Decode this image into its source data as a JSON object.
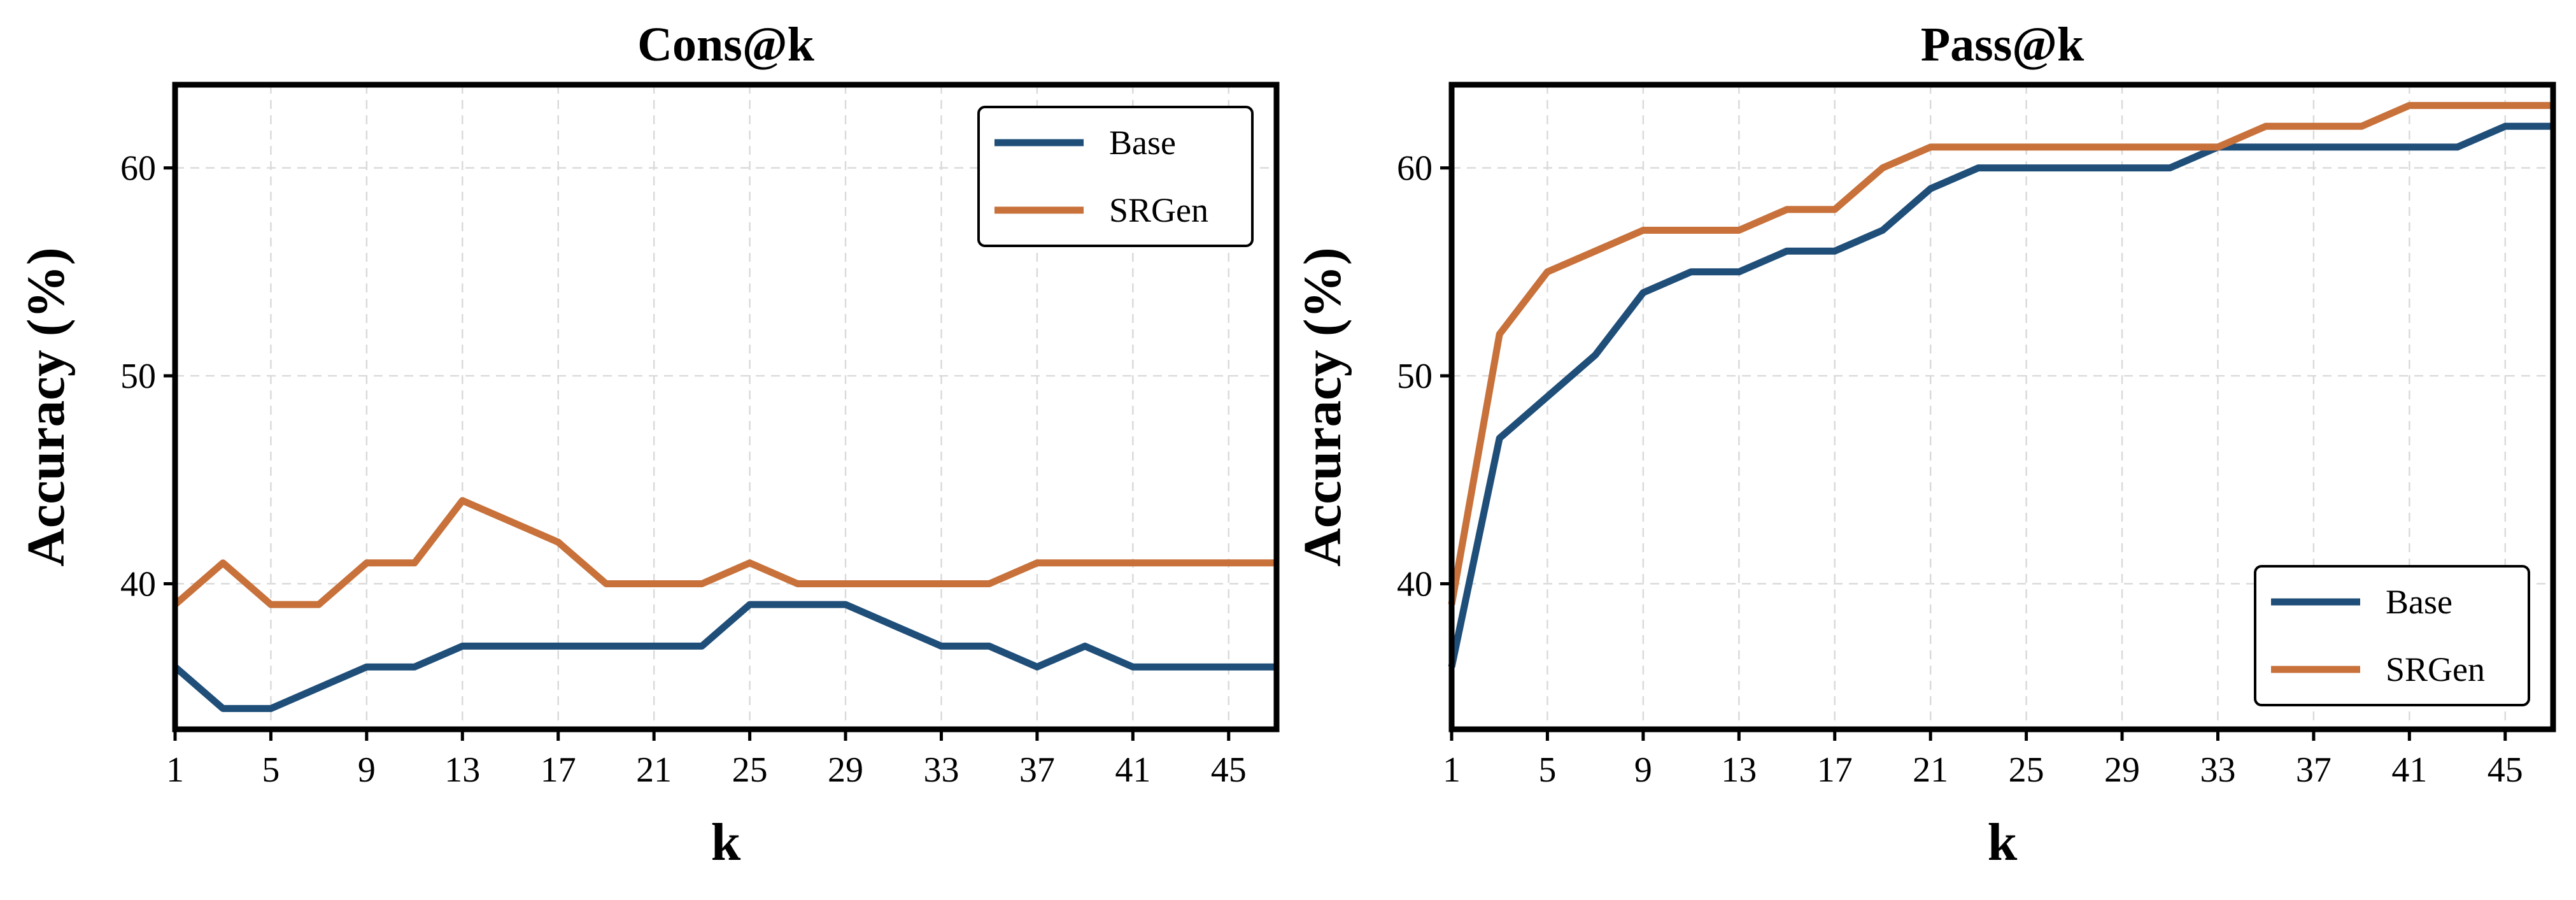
{
  "chart_data": [
    {
      "type": "line",
      "title": "Cons@k",
      "xlabel": "k",
      "ylabel": "Accuracy (%)",
      "x": [
        1,
        3,
        5,
        7,
        9,
        11,
        13,
        15,
        17,
        19,
        21,
        23,
        25,
        27,
        29,
        31,
        33,
        35,
        37,
        39,
        41,
        43,
        45,
        47
      ],
      "xticks": [
        "1",
        "5",
        "9",
        "13",
        "17",
        "21",
        "25",
        "29",
        "33",
        "37",
        "41",
        "45"
      ],
      "yticks": [
        "40",
        "50",
        "60"
      ],
      "xlim": [
        1,
        47
      ],
      "ylim": [
        33,
        64
      ],
      "legend_position": "top-right",
      "grid": true,
      "series": [
        {
          "name": "Base",
          "color": "#1f4e79",
          "values": [
            36,
            34,
            34,
            35,
            36,
            36,
            37,
            37,
            37,
            37,
            37,
            37,
            39,
            39,
            39,
            38,
            37,
            37,
            36,
            37,
            36,
            36,
            36,
            36
          ]
        },
        {
          "name": "SRGen",
          "color": "#c8713a",
          "values": [
            39,
            41,
            39,
            39,
            41,
            41,
            44,
            43,
            42,
            40,
            40,
            40,
            41,
            40,
            40,
            40,
            40,
            40,
            41,
            41,
            41,
            41,
            41,
            41
          ]
        }
      ]
    },
    {
      "type": "line",
      "title": "Pass@k",
      "xlabel": "k",
      "ylabel": "Accuracy (%)",
      "x": [
        1,
        3,
        5,
        7,
        9,
        11,
        13,
        15,
        17,
        19,
        21,
        23,
        25,
        27,
        29,
        31,
        33,
        35,
        37,
        39,
        41,
        43,
        45,
        47
      ],
      "xticks": [
        "1",
        "5",
        "9",
        "13",
        "17",
        "21",
        "25",
        "29",
        "33",
        "37",
        "41",
        "45"
      ],
      "yticks": [
        "40",
        "50",
        "60"
      ],
      "xlim": [
        1,
        47
      ],
      "ylim": [
        33,
        64
      ],
      "legend_position": "bottom-right",
      "grid": true,
      "series": [
        {
          "name": "Base",
          "color": "#1f4e79",
          "values": [
            36,
            47,
            49,
            51,
            54,
            55,
            55,
            56,
            56,
            57,
            59,
            60,
            60,
            60,
            60,
            60,
            61,
            61,
            61,
            61,
            61,
            61,
            62,
            62
          ]
        },
        {
          "name": "SRGen",
          "color": "#c8713a",
          "values": [
            39,
            52,
            55,
            56,
            57,
            57,
            57,
            58,
            58,
            60,
            61,
            61,
            61,
            61,
            61,
            61,
            61,
            62,
            62,
            62,
            63,
            63,
            63,
            63
          ]
        }
      ]
    }
  ]
}
